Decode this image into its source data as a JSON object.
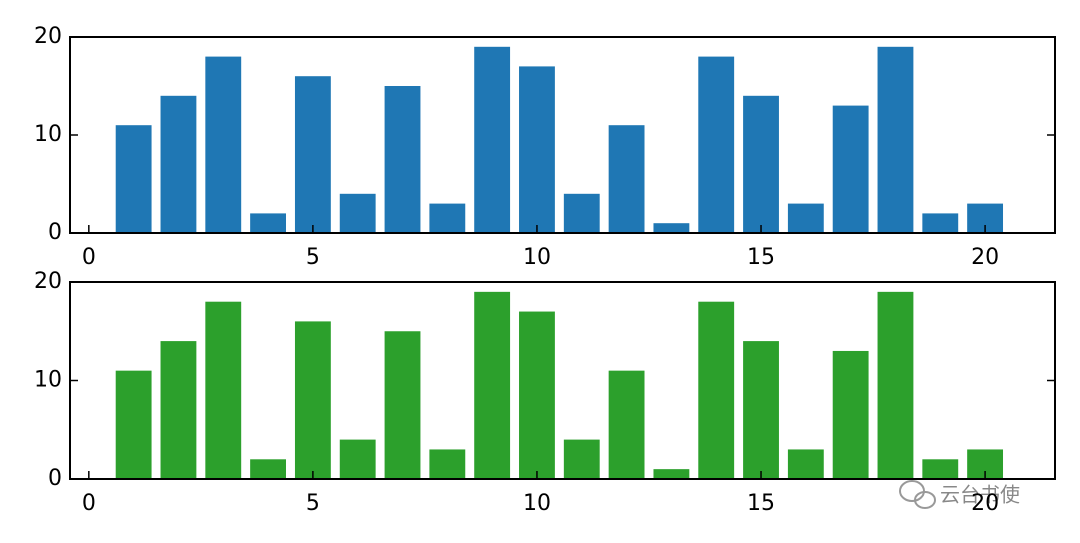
{
  "chart_data": [
    {
      "type": "bar",
      "x": [
        1,
        2,
        3,
        4,
        5,
        6,
        7,
        8,
        9,
        10,
        11,
        12,
        13,
        14,
        15,
        16,
        17,
        18,
        19,
        20
      ],
      "values": [
        11,
        14,
        18,
        2,
        16,
        4,
        15,
        3,
        19,
        17,
        4,
        11,
        1,
        18,
        14,
        3,
        13,
        19,
        2,
        3
      ],
      "color": "#1f77b4",
      "xlim": [
        -0.42,
        21.56
      ],
      "xticks": [
        0,
        5,
        10,
        15,
        20
      ],
      "ylim": [
        0,
        20
      ],
      "yticks": [
        0,
        10,
        20
      ]
    },
    {
      "type": "bar",
      "x": [
        1,
        2,
        3,
        4,
        5,
        6,
        7,
        8,
        9,
        10,
        11,
        12,
        13,
        14,
        15,
        16,
        17,
        18,
        19,
        20
      ],
      "values": [
        11,
        14,
        18,
        2,
        16,
        4,
        15,
        3,
        19,
        17,
        4,
        11,
        1,
        18,
        14,
        3,
        13,
        19,
        2,
        3
      ],
      "color": "#2ca02c",
      "xlim": [
        -0.42,
        21.56
      ],
      "xticks": [
        0,
        5,
        10,
        15,
        20
      ],
      "ylim": [
        0,
        20
      ],
      "yticks": [
        0,
        10,
        20
      ]
    }
  ],
  "watermark": "云台书使"
}
